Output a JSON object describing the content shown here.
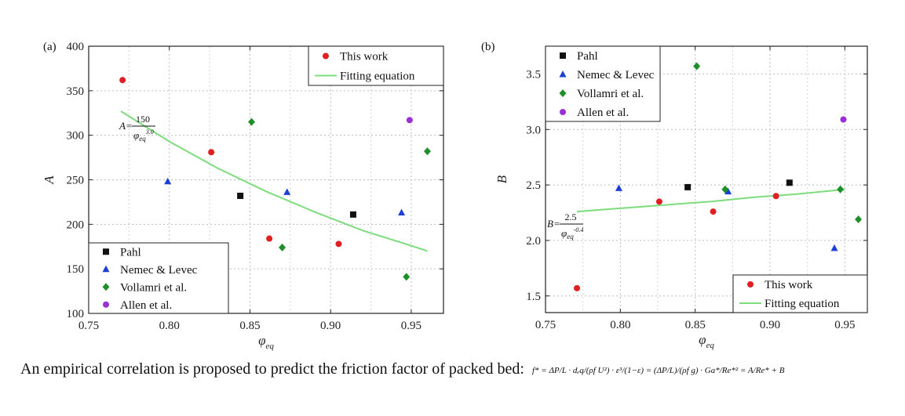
{
  "chart_data": [
    {
      "type": "scatter",
      "panel_label": "(a)",
      "ylabel": "A",
      "xlabel": "φ",
      "xlabel_sub": "eq",
      "xlim": [
        0.75,
        0.97
      ],
      "ylim": [
        100,
        400
      ],
      "xticks": [
        "0.75",
        "0.80",
        "0.85",
        "0.90",
        "0.95"
      ],
      "xtick_values": [
        0.75,
        0.8,
        0.85,
        0.9,
        0.95
      ],
      "yticks": [
        "100",
        "150",
        "200",
        "250",
        "300",
        "350",
        "400"
      ],
      "ytick_values": [
        100,
        150,
        200,
        250,
        300,
        350,
        400
      ],
      "grid": true,
      "equation": {
        "lhs": "A=",
        "num": "150",
        "den": "φ",
        "den_sub": "eq",
        "den_sup": "3.0"
      },
      "fit": {
        "name": "Fitting equation",
        "color": "#7ddc7d",
        "x": [
          0.77,
          0.8,
          0.83,
          0.86,
          0.89,
          0.92,
          0.95,
          0.96
        ],
        "y": [
          327,
          293,
          263,
          237,
          214,
          193,
          176,
          170
        ]
      },
      "legends": [
        {
          "position": "top-right",
          "entries": [
            {
              "name": "This work",
              "marker": "circle",
              "color": "#e02020"
            },
            {
              "name": "Fitting equation",
              "marker": "line",
              "color": "#7ddc7d"
            }
          ]
        },
        {
          "position": "bottom-left",
          "entries": [
            {
              "name": "Pahl",
              "marker": "square",
              "color": "#111111"
            },
            {
              "name": "Nemec & Levec",
              "marker": "triangle",
              "color": "#1c3fd4"
            },
            {
              "name": "Vollamri et al.",
              "marker": "diamond",
              "color": "#1f8f2a"
            },
            {
              "name": "Allen et al.",
              "marker": "circle",
              "color": "#9a2fd6"
            }
          ]
        }
      ],
      "series": [
        {
          "name": "This work",
          "marker": "circle",
          "color": "#e02020",
          "x": [
            0.771,
            0.826,
            0.862,
            0.905
          ],
          "y": [
            362,
            281,
            184,
            178
          ]
        },
        {
          "name": "Pahl",
          "marker": "square",
          "color": "#111111",
          "x": [
            0.844,
            0.914
          ],
          "y": [
            232,
            211
          ]
        },
        {
          "name": "Nemec & Levec",
          "marker": "triangle",
          "color": "#1c3fd4",
          "x": [
            0.799,
            0.873,
            0.944
          ],
          "y": [
            248,
            236,
            213
          ]
        },
        {
          "name": "Vollamri et al.",
          "marker": "diamond",
          "color": "#1f8f2a",
          "x": [
            0.851,
            0.87,
            0.947,
            0.96
          ],
          "y": [
            315,
            174,
            141,
            282
          ]
        },
        {
          "name": "Allen et al.",
          "marker": "circle",
          "color": "#9a2fd6",
          "x": [
            0.949
          ],
          "y": [
            317
          ]
        }
      ]
    },
    {
      "type": "scatter",
      "panel_label": "(b)",
      "ylabel": "B",
      "xlabel": "φ",
      "xlabel_sub": "eq",
      "xlim": [
        0.75,
        0.965
      ],
      "ylim": [
        1.35,
        3.75
      ],
      "xticks": [
        "0.75",
        "0.80",
        "0.85",
        "0.90",
        "0.95"
      ],
      "xtick_values": [
        0.75,
        0.8,
        0.85,
        0.9,
        0.95
      ],
      "yticks": [
        "1.5",
        "2.0",
        "2.5",
        "3.0",
        "3.5"
      ],
      "ytick_values": [
        1.5,
        2.0,
        2.5,
        3.0,
        3.5
      ],
      "grid": true,
      "equation": {
        "lhs": "B=",
        "num": "2.5",
        "den": "φ",
        "den_sub": "eq",
        "den_sup": "-0.4"
      },
      "fit": {
        "name": "Fitting equation",
        "color": "#7ddc7d",
        "x": [
          0.771,
          0.8,
          0.83,
          0.86,
          0.89,
          0.92,
          0.95
        ],
        "y": [
          2.26,
          2.29,
          2.32,
          2.35,
          2.39,
          2.42,
          2.46
        ]
      },
      "legends": [
        {
          "position": "top-left",
          "entries": [
            {
              "name": "Pahl",
              "marker": "square",
              "color": "#111111"
            },
            {
              "name": "Nemec & Levec",
              "marker": "triangle",
              "color": "#1c3fd4"
            },
            {
              "name": "Vollamri et al.",
              "marker": "diamond",
              "color": "#1f8f2a"
            },
            {
              "name": "Allen et al.",
              "marker": "circle",
              "color": "#9a2fd6"
            }
          ]
        },
        {
          "position": "bottom-right",
          "entries": [
            {
              "name": "This work",
              "marker": "circle",
              "color": "#e02020"
            },
            {
              "name": "Fitting equation",
              "marker": "line",
              "color": "#7ddc7d"
            }
          ]
        }
      ],
      "series": [
        {
          "name": "This work",
          "marker": "circle",
          "color": "#e02020",
          "x": [
            0.771,
            0.826,
            0.862,
            0.904
          ],
          "y": [
            1.57,
            2.35,
            2.26,
            2.4
          ]
        },
        {
          "name": "Pahl",
          "marker": "square",
          "color": "#111111",
          "x": [
            0.845,
            0.913
          ],
          "y": [
            2.48,
            2.52
          ]
        },
        {
          "name": "Nemec & Levec",
          "marker": "triangle",
          "color": "#1c3fd4",
          "x": [
            0.799,
            0.872,
            0.943
          ],
          "y": [
            2.47,
            2.44,
            1.93
          ]
        },
        {
          "name": "Vollamri et al.",
          "marker": "diamond",
          "color": "#1f8f2a",
          "x": [
            0.851,
            0.87,
            0.947,
            0.959
          ],
          "y": [
            3.57,
            2.46,
            2.46,
            2.19
          ]
        },
        {
          "name": "Allen et al.",
          "marker": "circle",
          "color": "#9a2fd6",
          "x": [
            0.949
          ],
          "y": [
            3.09
          ]
        }
      ]
    }
  ],
  "caption": {
    "text": "An empirical correlation is proposed to predict the friction factor of packed bed:",
    "formula": "f* = ΔP/L · dₑq/(ρf U²) · ε³/(1−ε) = (ΔP/L)/(ρf g) · Ga*/Re*² = A/Re* + B"
  }
}
